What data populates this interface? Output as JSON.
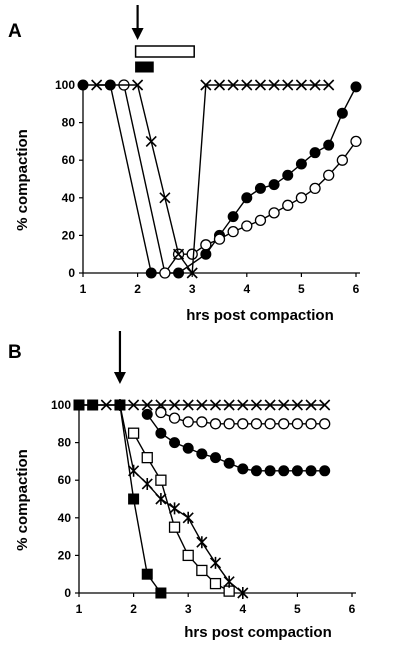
{
  "chart_data": [
    {
      "panel": "A",
      "type": "line",
      "xlabel": "hrs post compaction",
      "ylabel": "% compaction",
      "xlim": [
        1,
        6
      ],
      "ylim": [
        0,
        100
      ],
      "xticks": [
        1,
        2,
        3,
        4,
        5,
        6
      ],
      "yticks": [
        0,
        20,
        40,
        60,
        80,
        100
      ],
      "grid": false,
      "legend": "none",
      "annotations": {
        "arrow_x": 2.0,
        "open_bar": [
          2.0,
          3.0
        ],
        "filled_bar": [
          2.0,
          2.25
        ]
      },
      "series": [
        {
          "marker": "filled-circle",
          "x": [
            1.0,
            1.5,
            2.25,
            2.75,
            3.25,
            3.5,
            3.75,
            4.0,
            4.25,
            4.5,
            4.75,
            5.0,
            5.25,
            5.5,
            5.75,
            6.0
          ],
          "y": [
            100,
            100,
            0,
            0,
            10,
            20,
            30,
            40,
            45,
            47,
            52,
            58,
            64,
            68,
            85,
            99
          ]
        },
        {
          "marker": "open-circle",
          "x": [
            1.75,
            2.5,
            2.75,
            3.0,
            3.25,
            3.5,
            3.75,
            4.0,
            4.25,
            4.5,
            4.75,
            5.0,
            5.25,
            5.5,
            5.75,
            6.0
          ],
          "y": [
            100,
            0,
            10,
            10,
            15,
            18,
            22,
            25,
            28,
            32,
            36,
            40,
            45,
            52,
            60,
            70
          ]
        },
        {
          "marker": "cross",
          "x": [
            1.25,
            2.0,
            2.25,
            2.5,
            2.75,
            3.0,
            3.25,
            3.5,
            3.75,
            4.0,
            4.25,
            4.5,
            4.75,
            5.0,
            5.25,
            5.5
          ],
          "y": [
            100,
            100,
            70,
            40,
            10,
            0,
            100,
            100,
            100,
            100,
            100,
            100,
            100,
            100,
            100,
            100
          ]
        }
      ]
    },
    {
      "panel": "B",
      "type": "line",
      "xlabel": "hrs post compaction",
      "ylabel": "% compaction",
      "xlim": [
        1,
        6
      ],
      "ylim": [
        0,
        100
      ],
      "xticks": [
        1,
        2,
        3,
        4,
        5,
        6
      ],
      "yticks": [
        0,
        20,
        40,
        60,
        80,
        100
      ],
      "grid": false,
      "legend": "none",
      "annotations": {
        "arrow_x": 1.75
      },
      "series": [
        {
          "marker": "cross",
          "x": [
            1.0,
            1.5,
            1.75,
            2.0,
            2.25,
            2.5,
            2.75,
            3.0,
            3.25,
            3.5,
            3.75,
            4.0,
            4.25,
            4.5,
            4.75,
            5.0,
            5.25,
            5.5
          ],
          "y": [
            100,
            100,
            100,
            100,
            100,
            100,
            100,
            100,
            100,
            100,
            100,
            100,
            100,
            100,
            100,
            100,
            100,
            100
          ]
        },
        {
          "marker": "open-circle",
          "x": [
            2.5,
            2.75,
            3.0,
            3.25,
            3.5,
            3.75,
            4.0,
            4.25,
            4.5,
            4.75,
            5.0,
            5.25,
            5.5
          ],
          "y": [
            96,
            93,
            91,
            91,
            90,
            90,
            90,
            90,
            90,
            90,
            90,
            90,
            90
          ]
        },
        {
          "marker": "filled-circle",
          "x": [
            2.25,
            2.5,
            2.75,
            3.0,
            3.25,
            3.5,
            3.75,
            4.0,
            4.25,
            4.5,
            4.75,
            5.0,
            5.25,
            5.5
          ],
          "y": [
            95,
            85,
            80,
            77,
            74,
            72,
            69,
            66,
            65,
            65,
            65,
            65,
            65,
            65
          ]
        },
        {
          "marker": "filled-square",
          "x": [
            1.0,
            1.25,
            1.75,
            2.0,
            2.25,
            2.5
          ],
          "y": [
            100,
            100,
            100,
            50,
            10,
            0
          ]
        },
        {
          "marker": "open-square",
          "x": [
            2.0,
            2.25,
            2.5,
            2.75,
            3.0,
            3.25,
            3.5,
            3.75
          ],
          "y": [
            85,
            72,
            60,
            35,
            20,
            12,
            5,
            1
          ]
        },
        {
          "marker": "star",
          "x": [
            1.75,
            2.0,
            2.25,
            2.5,
            2.75,
            3.0,
            3.25,
            3.5,
            3.75,
            4.0
          ],
          "y": [
            100,
            65,
            58,
            50,
            45,
            40,
            27,
            16,
            6,
            0
          ]
        }
      ]
    }
  ]
}
